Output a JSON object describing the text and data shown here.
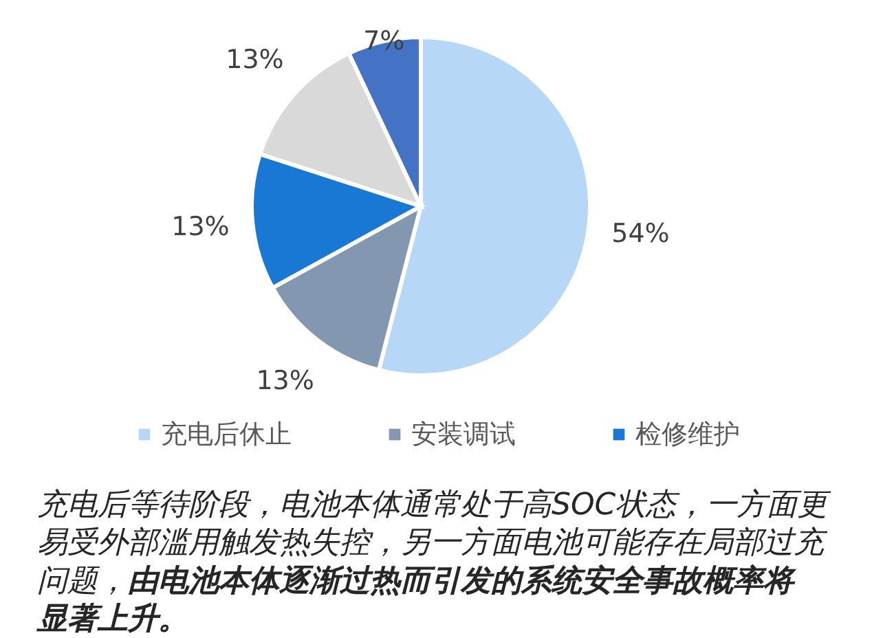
{
  "chart_data": {
    "type": "pie",
    "categories": [
      "充电后休止",
      "安装调试",
      "检修维护",
      null,
      null
    ],
    "values": [
      54,
      13,
      13,
      13,
      7
    ],
    "colors": [
      "#b7d7f7",
      "#8497b0",
      "#1878d4",
      "#d9d9d9",
      "#4472c4"
    ],
    "value_labels": [
      "54%",
      "13%",
      "13%",
      "13%",
      "7%"
    ],
    "legend": "bottom",
    "annotations": [
      "充电后等待阶段，电池本体通常处于高SOC状态，一方面更易受外部滥用触发热失控，另一方面电池可能存在局部过充问题，",
      "由电池本体逐渐过热而引发的系统安全事故概率将显著上升。"
    ]
  }
}
